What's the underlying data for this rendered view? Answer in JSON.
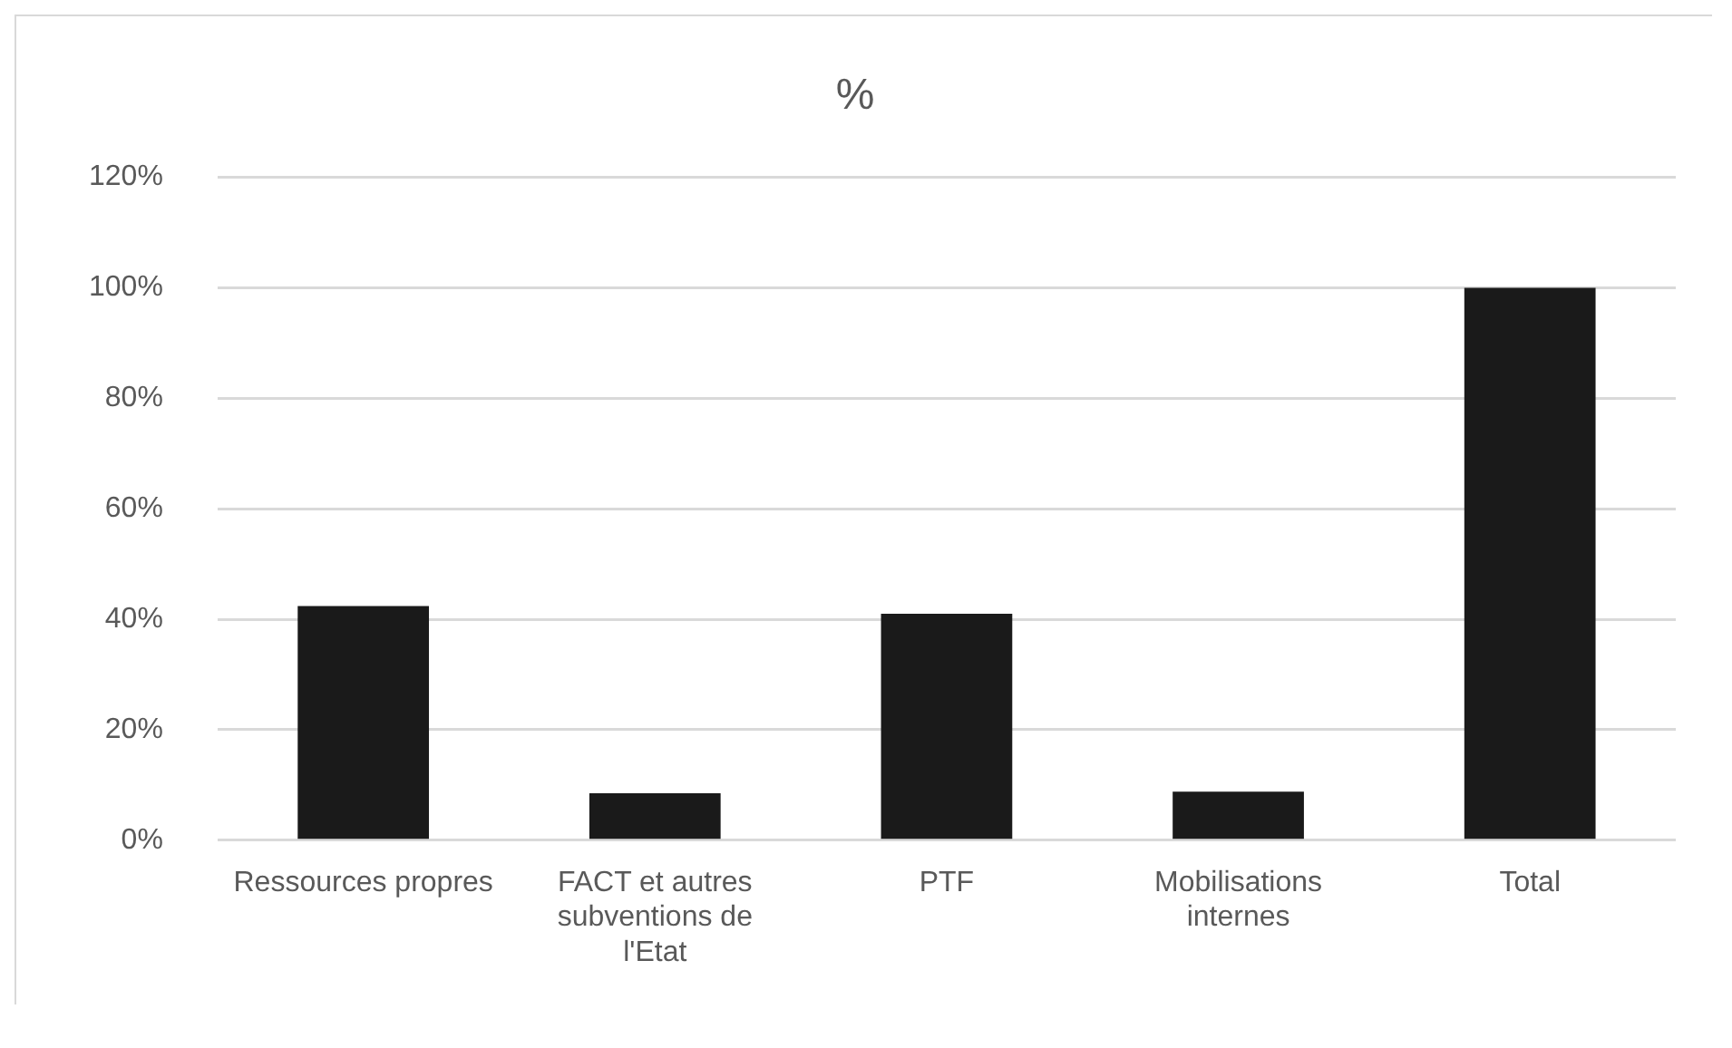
{
  "chart_data": {
    "type": "bar",
    "title": "%",
    "categories": [
      "Ressources propres",
      "FACT et autres subventions de l'Etat",
      "PTF",
      "Mobilisations internes",
      "Total"
    ],
    "values": [
      42.4,
      8.5,
      41,
      8.8,
      100
    ],
    "color": "#1a1a1a",
    "ylim": [
      0,
      120
    ],
    "yticks": [
      {
        "value": 0,
        "label": "0%"
      },
      {
        "value": 20,
        "label": "20%"
      },
      {
        "value": 40,
        "label": "40%"
      },
      {
        "value": 60,
        "label": "60%"
      },
      {
        "value": 80,
        "label": "80%"
      },
      {
        "value": 100,
        "label": "100%"
      },
      {
        "value": 120,
        "label": "120%"
      }
    ],
    "grid": "y",
    "legend": false
  }
}
